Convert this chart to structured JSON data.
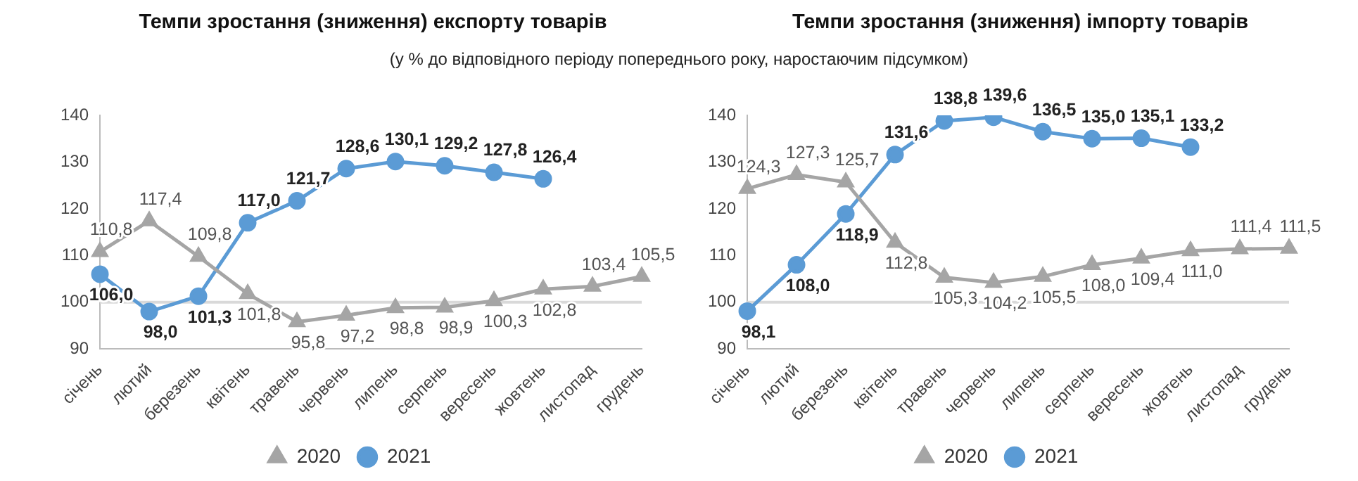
{
  "chart_data": [
    {
      "type": "line",
      "title": "Темпи зростання (зниження) експорту товарів",
      "subtitle": "(у % до відповідного періоду попереднього року, наростаючим підсумком)",
      "categories": [
        "січень",
        "лютий",
        "березень",
        "квітень",
        "травень",
        "червень",
        "липень",
        "серпень",
        "вересень",
        "жовтень",
        "листопад",
        "грудень"
      ],
      "series": [
        {
          "name": "2020",
          "color": "#a5a5a5",
          "marker": "triangle",
          "values": [
            110.8,
            117.4,
            109.8,
            101.8,
            95.8,
            97.2,
            98.8,
            98.9,
            100.3,
            102.8,
            103.4,
            105.5
          ],
          "value_labels": [
            "110,8",
            "117,4",
            "109,8",
            "101,8",
            "95,8",
            "97,2",
            "98,8",
            "98,9",
            "100,3",
            "102,8",
            "103,4",
            "105,5"
          ]
        },
        {
          "name": "2021",
          "color": "#5b9bd5",
          "marker": "circle",
          "values": [
            106.0,
            98.0,
            101.3,
            117.0,
            121.7,
            128.6,
            130.1,
            129.2,
            127.8,
            126.4,
            null,
            null
          ],
          "value_labels": [
            "106,0",
            "98,0",
            "101,3",
            "117,0",
            "121,7",
            "128,6",
            "130,1",
            "129,2",
            "127,8",
            "126,4",
            null,
            null
          ]
        }
      ],
      "ylim": [
        90,
        140
      ],
      "yticks": [
        90,
        100,
        110,
        120,
        130,
        140
      ],
      "grid": false,
      "legend": "bottom",
      "line_style": "solid",
      "ref_lines": [
        {
          "axis": "y",
          "value": 100,
          "color": "#d9d9d9"
        }
      ]
    },
    {
      "type": "line",
      "title": "Темпи зростання (зниження) імпорту товарів",
      "categories": [
        "січень",
        "лютий",
        "березень",
        "квітень",
        "травень",
        "червень",
        "липень",
        "серпень",
        "вересень",
        "жовтень",
        "листопад",
        "грудень"
      ],
      "series": [
        {
          "name": "2020",
          "color": "#a5a5a5",
          "marker": "triangle",
          "values": [
            124.3,
            127.3,
            125.7,
            112.8,
            105.3,
            104.2,
            105.5,
            108.0,
            109.4,
            111.0,
            111.4,
            111.5
          ],
          "value_labels": [
            "124,3",
            "127,3",
            "125,7",
            "112,8",
            "105,3",
            "104,2",
            "105,5",
            "108,0",
            "109,4",
            "111,0",
            "111,4",
            "111,5"
          ]
        },
        {
          "name": "2021",
          "color": "#5b9bd5",
          "marker": "circle",
          "values": [
            98.1,
            108.0,
            118.9,
            131.6,
            138.8,
            139.6,
            136.5,
            135.0,
            135.1,
            133.2,
            null,
            null
          ],
          "value_labels": [
            "98,1",
            "108,0",
            "118,9",
            "131,6",
            "138,8",
            "139,6",
            "136,5",
            "135,0",
            "135,1",
            "133,2",
            null,
            null
          ]
        }
      ],
      "ylim": [
        90,
        140
      ],
      "yticks": [
        90,
        100,
        110,
        120,
        130,
        140
      ],
      "grid": false,
      "legend": "bottom",
      "line_style": "solid",
      "ref_lines": [
        {
          "axis": "y",
          "value": 100,
          "color": "#d9d9d9"
        }
      ]
    }
  ]
}
